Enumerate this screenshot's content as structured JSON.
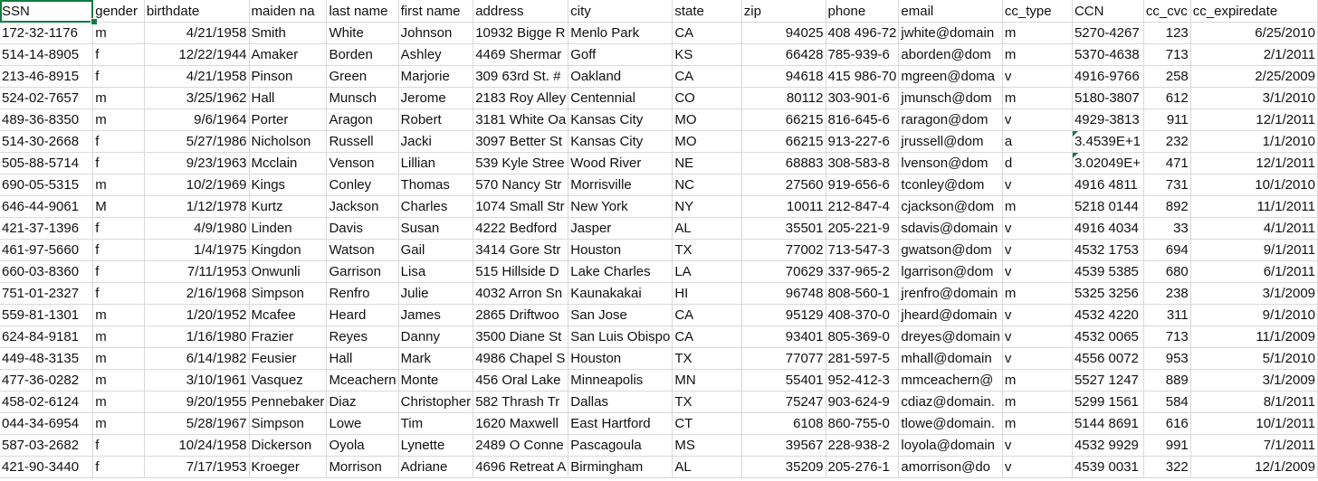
{
  "headers": [
    "SSN",
    "gender",
    "birthdate",
    "maiden na",
    "last name",
    "first name",
    "address",
    "city",
    "state",
    "zip",
    "phone",
    "email",
    "cc_type",
    "CCN",
    "cc_cvc",
    "cc_expiredate"
  ],
  "rows": [
    [
      "172-32-1176",
      "m",
      "4/21/1958",
      "Smith",
      "White",
      "Johnson",
      "10932 Bigge R",
      "Menlo Park",
      "CA",
      "94025",
      "408 496-72",
      "jwhite@domain",
      "m",
      "5270-4267",
      "123",
      "6/25/2010"
    ],
    [
      "514-14-8905",
      "f",
      "12/22/1944",
      "Amaker",
      "Borden",
      "Ashley",
      "4469 Shermar",
      "Goff",
      "KS",
      "66428",
      "785-939-6",
      "aborden@dom",
      "m",
      "5370-4638",
      "713",
      "2/1/2011"
    ],
    [
      "213-46-8915",
      "f",
      "4/21/1958",
      "Pinson",
      "Green",
      "Marjorie",
      "309 63rd St. #",
      "Oakland",
      "CA",
      "94618",
      "415 986-70",
      "mgreen@doma",
      "v",
      "4916-9766",
      "258",
      "2/25/2009"
    ],
    [
      "524-02-7657",
      "m",
      "3/25/1962",
      "Hall",
      "Munsch",
      "Jerome",
      "2183 Roy Alley",
      "Centennial",
      "CO",
      "80112",
      "303-901-6",
      "jmunsch@dom",
      "m",
      "5180-3807",
      "612",
      "3/1/2010"
    ],
    [
      "489-36-8350",
      "m",
      "9/6/1964",
      "Porter",
      "Aragon",
      "Robert",
      "3181 White Oa",
      "Kansas City",
      "MO",
      "66215",
      "816-645-6",
      "raragon@dom",
      "v",
      "4929-3813",
      "911",
      "12/1/2011"
    ],
    [
      "514-30-2668",
      "f",
      "5/27/1986",
      "Nicholson",
      "Russell",
      "Jacki",
      "3097 Better St",
      "Kansas City",
      "MO",
      "66215",
      "913-227-6",
      "jrussell@dom",
      "a",
      "3.4539E+1",
      "232",
      "1/1/2010"
    ],
    [
      "505-88-5714",
      "f",
      "9/23/1963",
      "Mcclain",
      "Venson",
      "Lillian",
      "539 Kyle Stree",
      "Wood River",
      "NE",
      "68883",
      "308-583-8",
      "lvenson@dom",
      "d",
      "3.02049E+",
      "471",
      "12/1/2011"
    ],
    [
      "690-05-5315",
      "m",
      "10/2/1969",
      "Kings",
      "Conley",
      "Thomas",
      "570 Nancy Str",
      "Morrisville",
      "NC",
      "27560",
      "919-656-6",
      "tconley@dom",
      "v",
      "4916 4811",
      "731",
      "10/1/2010"
    ],
    [
      "646-44-9061",
      "M",
      "1/12/1978",
      "Kurtz",
      "Jackson",
      "Charles",
      "1074 Small Str",
      "New York",
      "NY",
      "10011",
      "212-847-4",
      "cjackson@dom",
      "m",
      "5218 0144",
      "892",
      "11/1/2011"
    ],
    [
      "421-37-1396",
      "f",
      "4/9/1980",
      "Linden",
      "Davis",
      "Susan",
      "4222 Bedford",
      "Jasper",
      "AL",
      "35501",
      "205-221-9",
      "sdavis@domain",
      "v",
      "4916 4034",
      "33",
      "4/1/2011"
    ],
    [
      "461-97-5660",
      "f",
      "1/4/1975",
      "Kingdon",
      "Watson",
      "Gail",
      "3414 Gore Str",
      "Houston",
      "TX",
      "77002",
      "713-547-3",
      "gwatson@dom",
      "v",
      "4532 1753",
      "694",
      "9/1/2011"
    ],
    [
      "660-03-8360",
      "f",
      "7/11/1953",
      "Onwunli",
      "Garrison",
      "Lisa",
      "515 Hillside D",
      "Lake Charles",
      "LA",
      "70629",
      "337-965-2",
      "lgarrison@dom",
      "v",
      "4539 5385",
      "680",
      "6/1/2011"
    ],
    [
      "751-01-2327",
      "f",
      "2/16/1968",
      "Simpson",
      "Renfro",
      "Julie",
      "4032 Arron Sn",
      "Kaunakakai",
      "HI",
      "96748",
      "808-560-1",
      "jrenfro@domain",
      "m",
      "5325 3256",
      "238",
      "3/1/2009"
    ],
    [
      "559-81-1301",
      "m",
      "1/20/1952",
      "Mcafee",
      "Heard",
      "James",
      "2865 Driftwoo",
      "San Jose",
      "CA",
      "95129",
      "408-370-0",
      "jheard@domain",
      "v",
      "4532 4220",
      "311",
      "9/1/2010"
    ],
    [
      "624-84-9181",
      "m",
      "1/16/1980",
      "Frazier",
      "Reyes",
      "Danny",
      "3500 Diane St",
      "San Luis Obispo",
      "CA",
      "93401",
      "805-369-0",
      "dreyes@domain",
      "v",
      "4532 0065",
      "713",
      "11/1/2009"
    ],
    [
      "449-48-3135",
      "m",
      "6/14/1982",
      "Feusier",
      "Hall",
      "Mark",
      "4986 Chapel S",
      "Houston",
      "TX",
      "77077",
      "281-597-5",
      "mhall@domain",
      "v",
      "4556 0072",
      "953",
      "5/1/2010"
    ],
    [
      "477-36-0282",
      "m",
      "3/10/1961",
      "Vasquez",
      "Mceachern",
      "Monte",
      "456 Oral Lake",
      "Minneapolis",
      "MN",
      "55401",
      "952-412-3",
      "mmceachern@",
      "m",
      "5527 1247",
      "889",
      "3/1/2009"
    ],
    [
      "458-02-6124",
      "m",
      "9/20/1955",
      "Pennebaker",
      "Diaz",
      "Christopher",
      "582 Thrash Tr",
      "Dallas",
      "TX",
      "75247",
      "903-624-9",
      "cdiaz@domain.",
      "m",
      "5299 1561",
      "584",
      "8/1/2011"
    ],
    [
      "044-34-6954",
      "m",
      "5/28/1967",
      "Simpson",
      "Lowe",
      "Tim",
      "1620 Maxwell",
      "East Hartford",
      "CT",
      "6108",
      "860-755-0",
      "tlowe@domain.",
      "m",
      "5144 8691",
      "616",
      "10/1/2011"
    ],
    [
      "587-03-2682",
      "f",
      "10/24/1958",
      "Dickerson",
      "Oyola",
      "Lynette",
      "2489 O Conne",
      "Pascagoula",
      "MS",
      "39567",
      "228-938-2",
      "loyola@domain",
      "v",
      "4532 9929",
      "991",
      "7/1/2011"
    ],
    [
      "421-90-3440",
      "f",
      "7/17/1953",
      "Kroeger",
      "Morrison",
      "Adriane",
      "4696 Retreat A",
      "Birmingham",
      "AL",
      "35209",
      "205-276-1",
      "amorrison@do",
      "v",
      "4539 0031",
      "322",
      "12/1/2009"
    ]
  ]
}
